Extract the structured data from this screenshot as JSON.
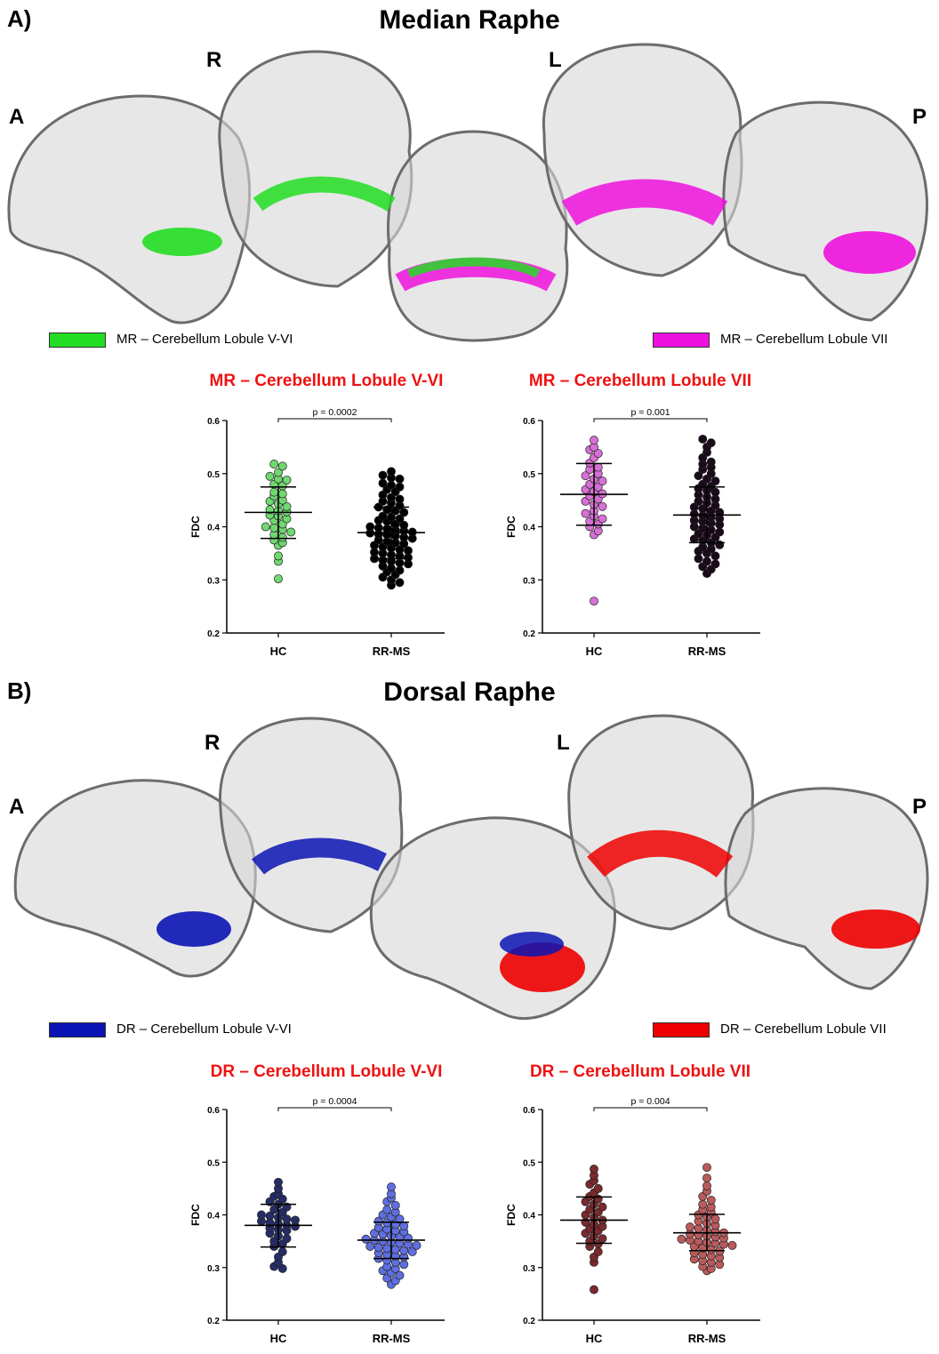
{
  "panels": [
    {
      "letter": "A)",
      "title": "Median Raphe",
      "orient": {
        "A": "A",
        "R": "R",
        "L": "L",
        "P": "P"
      },
      "legend_left": {
        "label": "MR – Cerebellum Lobule V-VI",
        "color": "#22dd22"
      },
      "legend_right": {
        "label": "MR – Cerebellum Lobule VII",
        "color": "#ee11dd"
      }
    },
    {
      "letter": "B)",
      "title": "Dorsal Raphe",
      "orient": {
        "A": "A",
        "R": "R",
        "L": "L",
        "P": "P"
      },
      "legend_left": {
        "label": "DR – Cerebellum Lobule V-VI",
        "color": "#0a14b4"
      },
      "legend_right": {
        "label": "DR – Cerebellum Lobule VII",
        "color": "#ee0000"
      }
    }
  ],
  "chart_data": [
    {
      "type": "scatter",
      "title": "MR – Cerebellum Lobule V-VI",
      "ylabel": "FDC",
      "ylim": [
        0.2,
        0.6
      ],
      "yticks": [
        "0.2",
        "0.3",
        "0.4",
        "0.5",
        "0.6"
      ],
      "categories": [
        "HC",
        "RR-MS"
      ],
      "pvalue": "p = 0.0002",
      "series": [
        {
          "color": "#6fd86f",
          "mean": 0.427,
          "sd_low": 0.378,
          "sd_high": 0.475,
          "values": [
            0.518,
            0.514,
            0.502,
            0.495,
            0.49,
            0.488,
            0.48,
            0.477,
            0.465,
            0.462,
            0.458,
            0.45,
            0.448,
            0.443,
            0.438,
            0.432,
            0.43,
            0.428,
            0.422,
            0.42,
            0.415,
            0.412,
            0.405,
            0.4,
            0.398,
            0.395,
            0.39,
            0.385,
            0.38,
            0.375,
            0.37,
            0.365,
            0.345,
            0.335,
            0.302
          ]
        },
        {
          "color": "#000000",
          "mean": 0.389,
          "sd_low": 0.34,
          "sd_high": 0.437,
          "values": [
            0.504,
            0.497,
            0.492,
            0.49,
            0.482,
            0.478,
            0.475,
            0.47,
            0.466,
            0.46,
            0.455,
            0.452,
            0.448,
            0.445,
            0.44,
            0.437,
            0.432,
            0.43,
            0.427,
            0.42,
            0.418,
            0.415,
            0.412,
            0.41,
            0.405,
            0.403,
            0.4,
            0.398,
            0.396,
            0.394,
            0.392,
            0.39,
            0.388,
            0.386,
            0.385,
            0.383,
            0.38,
            0.378,
            0.375,
            0.372,
            0.37,
            0.368,
            0.365,
            0.362,
            0.36,
            0.357,
            0.355,
            0.352,
            0.35,
            0.347,
            0.345,
            0.342,
            0.34,
            0.337,
            0.335,
            0.332,
            0.33,
            0.326,
            0.322,
            0.318,
            0.315,
            0.31,
            0.305,
            0.3,
            0.295,
            0.29
          ]
        }
      ]
    },
    {
      "type": "scatter",
      "title": "MR – Cerebellum Lobule VII",
      "ylabel": "FDC",
      "ylim": [
        0.2,
        0.6
      ],
      "yticks": [
        "0.2",
        "0.3",
        "0.4",
        "0.5",
        "0.6"
      ],
      "categories": [
        "HC",
        "RR-MS"
      ],
      "pvalue": "p = 0.001",
      "series": [
        {
          "color": "#d86fd6",
          "mean": 0.461,
          "sd_low": 0.403,
          "sd_high": 0.519,
          "values": [
            0.563,
            0.55,
            0.545,
            0.538,
            0.53,
            0.52,
            0.512,
            0.508,
            0.5,
            0.496,
            0.49,
            0.486,
            0.48,
            0.475,
            0.47,
            0.466,
            0.462,
            0.458,
            0.452,
            0.448,
            0.442,
            0.438,
            0.43,
            0.425,
            0.42,
            0.415,
            0.41,
            0.405,
            0.4,
            0.392,
            0.385,
            0.26
          ]
        },
        {
          "color": "#1a0a1a",
          "mean": 0.422,
          "sd_low": 0.37,
          "sd_high": 0.475,
          "values": [
            0.565,
            0.558,
            0.55,
            0.54,
            0.53,
            0.522,
            0.518,
            0.512,
            0.508,
            0.5,
            0.496,
            0.49,
            0.486,
            0.48,
            0.476,
            0.472,
            0.468,
            0.465,
            0.46,
            0.456,
            0.452,
            0.448,
            0.445,
            0.44,
            0.437,
            0.434,
            0.43,
            0.427,
            0.424,
            0.421,
            0.418,
            0.415,
            0.412,
            0.41,
            0.407,
            0.404,
            0.4,
            0.397,
            0.394,
            0.39,
            0.387,
            0.384,
            0.38,
            0.377,
            0.374,
            0.37,
            0.366,
            0.362,
            0.358,
            0.354,
            0.35,
            0.345,
            0.34,
            0.335,
            0.33,
            0.325,
            0.32,
            0.312
          ]
        }
      ]
    },
    {
      "type": "scatter",
      "title": "DR – Cerebellum Lobule V-VI",
      "ylabel": "FDC",
      "ylim": [
        0.2,
        0.6
      ],
      "yticks": [
        "0.2",
        "0.3",
        "0.4",
        "0.5",
        "0.6"
      ],
      "categories": [
        "HC",
        "RR-MS"
      ],
      "pvalue": "p = 0.0004",
      "series": [
        {
          "color": "#262c66",
          "mean": 0.38,
          "sd_low": 0.339,
          "sd_high": 0.42,
          "values": [
            0.462,
            0.45,
            0.44,
            0.435,
            0.43,
            0.425,
            0.42,
            0.415,
            0.41,
            0.405,
            0.4,
            0.398,
            0.395,
            0.392,
            0.39,
            0.388,
            0.385,
            0.383,
            0.38,
            0.378,
            0.375,
            0.372,
            0.37,
            0.365,
            0.36,
            0.355,
            0.35,
            0.345,
            0.34,
            0.33,
            0.32,
            0.31,
            0.302,
            0.298
          ]
        },
        {
          "color": "#5f6ee0",
          "mean": 0.352,
          "sd_low": 0.317,
          "sd_high": 0.386,
          "values": [
            0.453,
            0.44,
            0.432,
            0.425,
            0.418,
            0.41,
            0.405,
            0.4,
            0.396,
            0.392,
            0.388,
            0.385,
            0.382,
            0.379,
            0.376,
            0.373,
            0.37,
            0.368,
            0.365,
            0.363,
            0.36,
            0.358,
            0.356,
            0.354,
            0.352,
            0.35,
            0.348,
            0.346,
            0.344,
            0.342,
            0.34,
            0.338,
            0.336,
            0.334,
            0.332,
            0.33,
            0.328,
            0.325,
            0.322,
            0.32,
            0.317,
            0.314,
            0.31,
            0.306,
            0.302,
            0.298,
            0.294,
            0.29,
            0.285,
            0.28,
            0.275,
            0.268
          ]
        }
      ]
    },
    {
      "type": "scatter",
      "title": "DR – Cerebellum Lobule VII",
      "ylabel": "FDC",
      "ylim": [
        0.2,
        0.6
      ],
      "yticks": [
        "0.2",
        "0.3",
        "0.4",
        "0.5",
        "0.6"
      ],
      "categories": [
        "HC",
        "RR-MS"
      ],
      "pvalue": "p = 0.004",
      "series": [
        {
          "color": "#7a2a2e",
          "mean": 0.39,
          "sd_low": 0.346,
          "sd_high": 0.434,
          "values": [
            0.487,
            0.475,
            0.465,
            0.458,
            0.45,
            0.442,
            0.435,
            0.43,
            0.425,
            0.42,
            0.415,
            0.41,
            0.405,
            0.4,
            0.395,
            0.39,
            0.386,
            0.382,
            0.378,
            0.374,
            0.37,
            0.365,
            0.36,
            0.355,
            0.35,
            0.345,
            0.34,
            0.33,
            0.32,
            0.31,
            0.258
          ]
        },
        {
          "color": "#bb5a5c",
          "mean": 0.366,
          "sd_low": 0.332,
          "sd_high": 0.401,
          "values": [
            0.49,
            0.47,
            0.455,
            0.445,
            0.435,
            0.428,
            0.42,
            0.415,
            0.41,
            0.405,
            0.4,
            0.396,
            0.392,
            0.388,
            0.384,
            0.38,
            0.377,
            0.374,
            0.371,
            0.368,
            0.366,
            0.364,
            0.362,
            0.36,
            0.358,
            0.356,
            0.354,
            0.352,
            0.35,
            0.348,
            0.346,
            0.344,
            0.342,
            0.34,
            0.337,
            0.334,
            0.331,
            0.328,
            0.325,
            0.322,
            0.319,
            0.316,
            0.313,
            0.31,
            0.306,
            0.302,
            0.298,
            0.294
          ]
        }
      ]
    }
  ]
}
